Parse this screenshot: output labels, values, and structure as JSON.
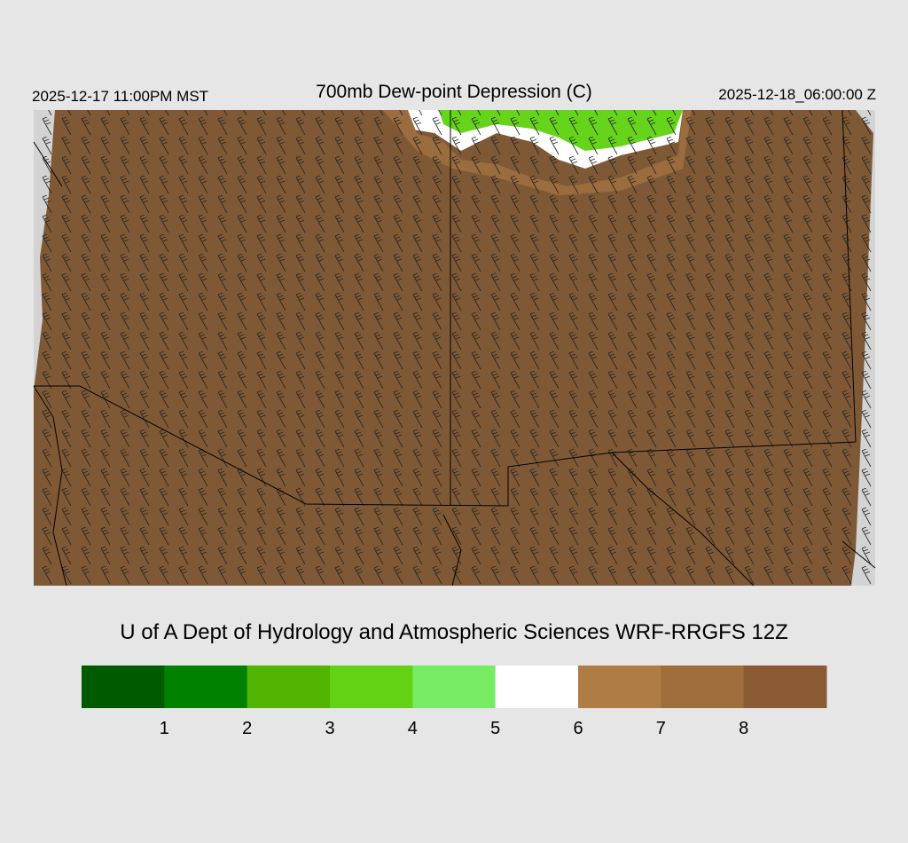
{
  "header": {
    "left": "2025-12-17 11:00PM MST",
    "title": "700mb Dew-point Depression (C)",
    "right": "2025-12-18_06:00:00 Z"
  },
  "footer": "U of A Dept of Hydrology and Atmospheric Sciences WRF-RRGFS 12Z",
  "colorbar": {
    "colors": [
      "#005a00",
      "#008200",
      "#50b400",
      "#64d214",
      "#78eb64",
      "#ffffff",
      "#b07c45",
      "#a06e3c",
      "#8a5a32"
    ],
    "labels": [
      1,
      2,
      3,
      4,
      5,
      6,
      7,
      8
    ]
  }
}
